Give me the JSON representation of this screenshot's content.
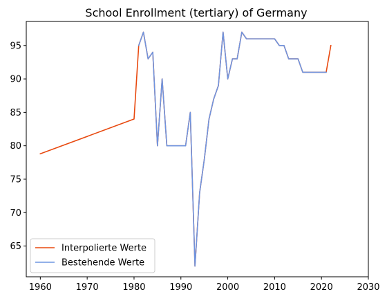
{
  "chart_data": {
    "type": "line",
    "title": "School Enrollment (tertiary) of Germany",
    "xlabel": "",
    "ylabel": "",
    "xlim": [
      1957,
      2030
    ],
    "ylim": [
      60.4,
      98.6
    ],
    "xticks": [
      1960,
      1970,
      1980,
      1990,
      2000,
      2010,
      2020,
      2030
    ],
    "yticks": [
      65,
      70,
      75,
      80,
      85,
      90,
      95
    ],
    "grid": false,
    "legend_position": "lower-left",
    "series": [
      {
        "name": "Interpolierte Werte",
        "color": "#e8490f",
        "x": [
          1960,
          1980,
          1981,
          1982,
          1983,
          1984,
          1985,
          1986,
          1987,
          1990,
          1991,
          1992,
          1993,
          1994,
          1995,
          1996,
          1997,
          1998,
          1999,
          2000,
          2001,
          2002,
          2003,
          2004,
          2010,
          2011,
          2012,
          2013,
          2015,
          2016,
          2021,
          2022
        ],
        "y": [
          78.8,
          84.0,
          95,
          97,
          93,
          94,
          80,
          90,
          80,
          80,
          80,
          85,
          62,
          73,
          78,
          84,
          87,
          89,
          97,
          90,
          93,
          93,
          97,
          96,
          96,
          95,
          95,
          93,
          93,
          91,
          91,
          95
        ]
      },
      {
        "name": "Bestehende Werte",
        "color": "#6f95e0",
        "x": [
          1981,
          1982,
          1983,
          1984,
          1985,
          1986,
          1987,
          1990,
          1991,
          1992,
          1993,
          1994,
          1995,
          1996,
          1997,
          1998,
          1999,
          2000,
          2001,
          2002,
          2003,
          2004,
          2010,
          2011,
          2012,
          2013,
          2015,
          2016,
          2021
        ],
        "y": [
          95,
          97,
          93,
          94,
          80,
          90,
          80,
          80,
          80,
          85,
          62,
          73,
          78,
          84,
          87,
          89,
          97,
          90,
          93,
          93,
          97,
          96,
          96,
          95,
          95,
          93,
          93,
          91,
          91
        ]
      }
    ]
  }
}
